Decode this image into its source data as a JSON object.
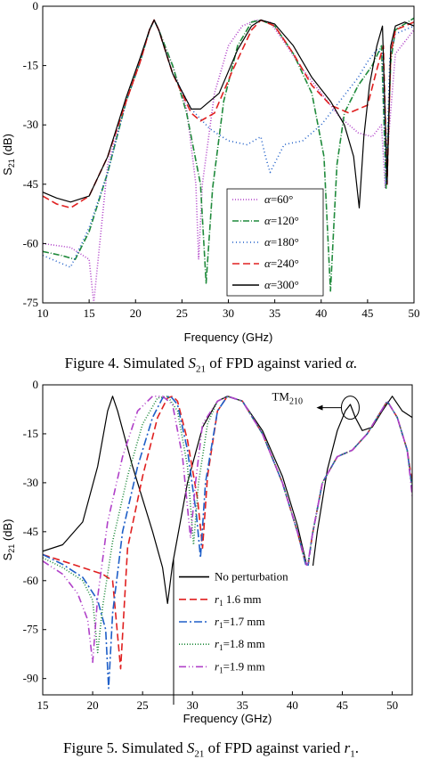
{
  "charts": [
    {
      "type": "line",
      "xlabel": "Frequency (GHz)",
      "ylabel": "S21 (dB)",
      "xlim": [
        10,
        50
      ],
      "ylim": [
        -75,
        0
      ],
      "xticks": [
        "10",
        "15",
        "20",
        "25",
        "30",
        "35",
        "40",
        "45",
        "50"
      ],
      "yticks": [
        "0",
        "-15",
        "-30",
        "-45",
        "-60",
        "-75"
      ],
      "caption_prefix": "Figure 4. Simulated ",
      "caption_var": "S",
      "caption_sub": "21",
      "caption_mid": " of FPD against varied ",
      "caption_end": "α.",
      "legend": [
        "α=60°",
        "α=120°",
        "α=180°",
        "α=240°",
        "α=300°"
      ],
      "series": [
        {
          "name": "α=60°",
          "color": "#b040c8",
          "dash": "1,2",
          "x": [
            10,
            13,
            15,
            15.5,
            17,
            19,
            20.5,
            21.5,
            22,
            22.5,
            24,
            25.5,
            26.5,
            26.8,
            27.2,
            28.5,
            30,
            31.5,
            33,
            34.5,
            36,
            38,
            40,
            42,
            44,
            45.5,
            46.5,
            46.9,
            47.3,
            48,
            50
          ],
          "y": [
            -60,
            -61,
            -64,
            -75,
            -40,
            -24,
            -14,
            -6,
            -3.5,
            -6,
            -15,
            -26,
            -45,
            -64,
            -45,
            -22,
            -10,
            -5,
            -3.5,
            -4,
            -9,
            -16,
            -22,
            -28,
            -32,
            -33,
            -30,
            -46,
            -32,
            -12,
            -6
          ]
        },
        {
          "name": "α=120°",
          "color": "#1f8a3b",
          "dash": "7,2,1,2",
          "x": [
            10,
            12,
            13.5,
            15,
            17,
            19,
            20.5,
            21.5,
            22,
            22.5,
            24,
            25.5,
            27,
            27.6,
            28.3,
            29.5,
            31,
            32.5,
            33.5,
            35,
            37,
            39,
            40.3,
            41,
            41.7,
            42.5,
            44,
            45.5,
            46.5,
            47,
            47.5,
            48,
            50
          ],
          "y": [
            -62,
            -63,
            -64,
            -57,
            -42,
            -24,
            -14,
            -6,
            -3.5,
            -6,
            -15,
            -27,
            -45,
            -70,
            -46,
            -24,
            -10,
            -4,
            -3.5,
            -5,
            -12,
            -22,
            -38,
            -72,
            -40,
            -27,
            -20,
            -15,
            -10,
            -46,
            -14,
            -6,
            -3
          ]
        },
        {
          "name": "α=180°",
          "color": "#1f5fc8",
          "dash": "1,3",
          "x": [
            10,
            12,
            13,
            15,
            17,
            19,
            20.5,
            21.5,
            22,
            22.5,
            24,
            26,
            28,
            30,
            32,
            33.5,
            34,
            34.5,
            36,
            38,
            40,
            42,
            44,
            45,
            46,
            46.6,
            47,
            47.4,
            48,
            50
          ],
          "y": [
            -63,
            -65,
            -66,
            -56,
            -42,
            -24,
            -14,
            -6,
            -3.5,
            -6,
            -17,
            -26,
            -31,
            -34,
            -35,
            -33,
            -38,
            -42,
            -35,
            -34,
            -30,
            -24,
            -18,
            -14,
            -11,
            -12,
            -45,
            -13,
            -7,
            -5
          ]
        },
        {
          "name": "α=240°",
          "color": "#e02020",
          "dash": "8,4",
          "x": [
            10,
            11.5,
            13,
            15,
            17,
            19,
            20.5,
            21.5,
            22,
            22.5,
            24,
            26,
            27,
            28.5,
            30.5,
            32.5,
            33.5,
            35,
            37,
            39,
            41,
            43,
            45,
            46,
            46.7,
            47.1,
            47.5,
            48,
            50
          ],
          "y": [
            -48,
            -50,
            -51,
            -48,
            -38,
            -24,
            -14,
            -6,
            -3.5,
            -6,
            -17,
            -27,
            -29,
            -27,
            -16,
            -6,
            -3.5,
            -5,
            -12,
            -20,
            -25,
            -27,
            -25,
            -16,
            -10,
            -45,
            -12,
            -6,
            -4
          ]
        },
        {
          "name": "α=300°",
          "color": "#000000",
          "dash": "",
          "x": [
            10,
            11.5,
            13,
            15,
            17,
            19,
            20.5,
            21.5,
            22,
            22.5,
            24,
            26,
            27,
            29,
            31,
            32.5,
            33.5,
            35,
            37,
            39,
            41,
            42.5,
            43.5,
            44.1,
            44.6,
            45.2,
            46,
            46.6,
            47.1,
            47.5,
            48,
            49,
            50
          ],
          "y": [
            -47,
            -48.5,
            -49.5,
            -48,
            -38,
            -23,
            -13,
            -6,
            -3.5,
            -6,
            -17,
            -26,
            -26,
            -22,
            -11,
            -5,
            -3.5,
            -4.5,
            -10,
            -18,
            -24,
            -30,
            -38,
            -51,
            -33,
            -20,
            -10,
            -5,
            -45,
            -10,
            -5,
            -4,
            -5
          ]
        }
      ]
    },
    {
      "type": "line",
      "xlabel": "Frequency (GHz)",
      "ylabel": "S21 (dB)",
      "xlim": [
        15,
        52
      ],
      "ylim": [
        -95,
        0
      ],
      "xticks": [
        "15",
        "20",
        "25",
        "30",
        "35",
        "40",
        "45",
        "50"
      ],
      "yticks": [
        "0",
        "-15",
        "-30",
        "-45",
        "-60",
        "-75",
        "-90"
      ],
      "annotation": "TM",
      "annotation_sub": "210",
      "caption_prefix": "Figure 5. Simulated ",
      "caption_var": "S",
      "caption_sub": "21",
      "caption_mid": " of FPD against varied ",
      "caption_end": "r",
      "caption_end_sub": "1",
      "caption_tail": ".",
      "legend": [
        "No perturbation",
        "r1  1.6 mm",
        "r1=1.7 mm",
        "r1=1.8 mm",
        "r1=1.9 mm"
      ],
      "series": [
        {
          "name": "No perturbation",
          "color": "#000000",
          "dash": "",
          "x": [
            15,
            17,
            19,
            20.5,
            21.5,
            22,
            22.5,
            24,
            26,
            27,
            27.5,
            28,
            29.5,
            31,
            32.5,
            33.5,
            35,
            37,
            39,
            40.5,
            41.5,
            42,
            42.5,
            43.5,
            44.5,
            45.3,
            45.8,
            46.3,
            47,
            48,
            49,
            50,
            51,
            52
          ],
          "y": [
            -51,
            -49,
            -42,
            -25,
            -8,
            -3.5,
            -8,
            -25,
            -45,
            -56,
            -67,
            -55,
            -30,
            -13,
            -5,
            -3.5,
            -5,
            -14,
            -28,
            -43,
            -56,
            -57,
            -45,
            -26,
            -14,
            -8,
            -6,
            -10,
            -14,
            -13,
            -8,
            -3.5,
            -8,
            -10
          ]
        },
        {
          "name": "r1  1.6 mm",
          "color": "#e02020",
          "dash": "8,4",
          "x": [
            15,
            17,
            19,
            21,
            22,
            22.8,
            23.5,
            25,
            26.5,
            27.5,
            28,
            28.5,
            29.5,
            30.5,
            31,
            31.5,
            32.5,
            33.5,
            35,
            37,
            39,
            40.5,
            41.5,
            42,
            43,
            44.5,
            46,
            47.5,
            48.5,
            49.5,
            50.5,
            51.5,
            52
          ],
          "y": [
            -52,
            -54,
            -56,
            -58,
            -60,
            -87,
            -50,
            -28,
            -10,
            -4,
            -3.5,
            -5,
            -17,
            -35,
            -50,
            -28,
            -8,
            -3.5,
            -5,
            -15,
            -30,
            -45,
            -57,
            -46,
            -30,
            -22,
            -20,
            -15,
            -10,
            -5,
            -10,
            -20,
            -30
          ]
        },
        {
          "name": "r1=1.7 mm",
          "color": "#1f5fc8",
          "dash": "9,3,2,3",
          "x": [
            15,
            17,
            19,
            20.5,
            21.3,
            21.6,
            22,
            23,
            24.5,
            26,
            27,
            27.8,
            28.5,
            29.5,
            30.4,
            30.8,
            31.3,
            32.5,
            33.5,
            35,
            37,
            39,
            40.5,
            41.5,
            42,
            43,
            44.5,
            46,
            47.5,
            48.5,
            49.5,
            50.5,
            51.5,
            52
          ],
          "y": [
            -52,
            -55,
            -59,
            -66,
            -75,
            -93,
            -70,
            -45,
            -25,
            -10,
            -4,
            -3.5,
            -6,
            -20,
            -40,
            -53,
            -30,
            -8,
            -3.5,
            -5,
            -15,
            -30,
            -45,
            -57,
            -46,
            -30,
            -22,
            -20,
            -15,
            -10,
            -5,
            -10,
            -20,
            -32
          ]
        },
        {
          "name": "r1=1.8 mm",
          "color": "#1f8a3b",
          "dash": "1,2",
          "x": [
            15,
            17,
            19,
            20,
            20.5,
            21,
            22,
            23.5,
            25,
            26.5,
            27.5,
            28.5,
            29.5,
            30.1,
            30.6,
            31.5,
            32.5,
            33.5,
            35,
            37,
            39,
            40.5,
            41.5,
            42,
            43,
            44.5,
            46,
            47.5,
            48.5,
            49.5,
            50.5,
            51.5,
            52
          ],
          "y": [
            -53,
            -56,
            -60,
            -66,
            -82,
            -68,
            -48,
            -28,
            -12,
            -4,
            -3.5,
            -8,
            -25,
            -49,
            -30,
            -12,
            -5,
            -3.5,
            -5,
            -15,
            -30,
            -45,
            -56,
            -46,
            -30,
            -22,
            -20,
            -15,
            -10,
            -5,
            -10,
            -20,
            -32
          ]
        },
        {
          "name": "r1=1.9 mm",
          "color": "#b040c8",
          "dash": "8,3,1,3,1,3",
          "x": [
            15,
            17,
            18.5,
            19.5,
            20,
            20.5,
            21.5,
            23,
            24.5,
            26,
            27,
            28,
            29,
            29.8,
            30.3,
            31,
            32.5,
            33.5,
            35,
            37,
            39,
            40.5,
            41.5,
            42,
            43,
            44.5,
            46,
            47.5,
            48.5,
            49.5,
            50.5,
            51.5,
            52
          ],
          "y": [
            -54,
            -58,
            -64,
            -72,
            -85,
            -65,
            -42,
            -22,
            -8,
            -3.5,
            -3.5,
            -6,
            -22,
            -47,
            -30,
            -12,
            -5,
            -3.5,
            -5,
            -15,
            -30,
            -45,
            -56,
            -46,
            -30,
            -22,
            -20,
            -15,
            -10,
            -5,
            -10,
            -20,
            -34
          ]
        }
      ]
    }
  ]
}
